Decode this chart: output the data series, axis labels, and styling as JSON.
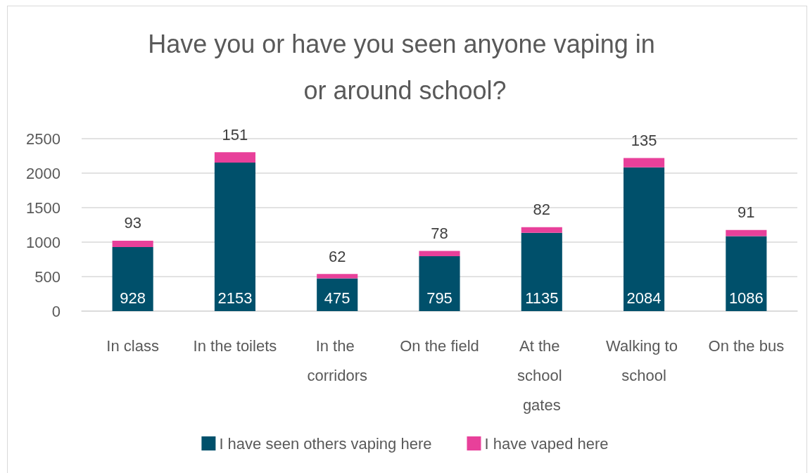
{
  "chart_data": {
    "type": "bar",
    "title": "Have you or have you seen anyone vaping in or around school?",
    "categories": [
      "In class",
      "In the toilets",
      "In the corridors",
      "On the field",
      "At the school gates",
      "Walking to school",
      "On the bus"
    ],
    "stacked": true,
    "series": [
      {
        "name": "I have seen others vaping here",
        "color": "#00506b",
        "values": [
          928,
          2153,
          475,
          795,
          1135,
          2084,
          1086
        ]
      },
      {
        "name": "I have vaped here",
        "color": "#e8409a",
        "values": [
          93,
          151,
          62,
          78,
          82,
          135,
          91
        ]
      }
    ],
    "ylim": [
      0,
      2500
    ],
    "yticks": [
      0,
      500,
      1000,
      1500,
      2000,
      2500
    ],
    "grid": "y",
    "legend": "bottom",
    "data_labels": true
  }
}
